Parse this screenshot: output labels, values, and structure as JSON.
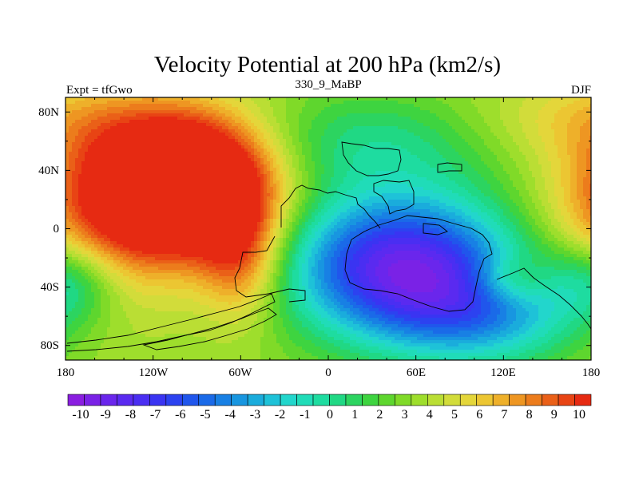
{
  "chart_data": {
    "type": "heatmap",
    "title": "Velocity Potential at 200 hPa (km2/s)",
    "subtitle_left": "Expt = tfGwo",
    "subtitle_center": "330_9_MaBP",
    "subtitle_right": "DJF",
    "x_ticks": [
      "180",
      "120W",
      "60W",
      "0",
      "60E",
      "120E",
      "180"
    ],
    "x_tick_values": [
      -180,
      -120,
      -60,
      0,
      60,
      120,
      180
    ],
    "y_ticks": [
      "80N",
      "40N",
      "0",
      "40S",
      "80S"
    ],
    "y_tick_values": [
      80,
      40,
      0,
      -40,
      -80
    ],
    "xlim": [
      -180,
      180
    ],
    "ylim": [
      -90,
      90
    ],
    "value_range": [
      -10.5,
      10.5
    ],
    "colorbar_labels": [
      "-10",
      "-9",
      "-8",
      "-7",
      "-6",
      "-5",
      "-4",
      "-3",
      "-2",
      "-1",
      "0",
      "1",
      "2",
      "3",
      "4",
      "5",
      "6",
      "7",
      "8",
      "9",
      "10"
    ],
    "colorbar_colors": [
      "#8a1ee0",
      "#7a22e6",
      "#6a26ec",
      "#5a2af0",
      "#4a2ef2",
      "#3a34f2",
      "#2c42f0",
      "#2056ec",
      "#1a6ae8",
      "#1880e4",
      "#1896e0",
      "#1aacdc",
      "#1ec2d8",
      "#22d6cc",
      "#20dcb8",
      "#1edca0",
      "#20d884",
      "#2cd460",
      "#3ed440",
      "#5ed62e",
      "#80da28",
      "#9ede2c",
      "#bade34",
      "#d2dc3a",
      "#e4d63a",
      "#ecc632",
      "#eeb02a",
      "#ee9622",
      "#ec7c1c",
      "#ea6018",
      "#e84414",
      "#e62a12"
    ],
    "features": [
      {
        "lon": -95,
        "lat": 30,
        "amp": 14,
        "rlon": 40,
        "rlat": 32
      },
      {
        "lon": -155,
        "lat": 10,
        "amp": 5,
        "rlon": 40,
        "rlat": 45
      },
      {
        "lon": -60,
        "lat": -20,
        "amp": 5,
        "rlon": 20,
        "rlat": 30
      },
      {
        "lon": 50,
        "lat": -25,
        "amp": -12,
        "rlon": 55,
        "rlat": 35
      },
      {
        "lon": 110,
        "lat": -60,
        "amp": -5,
        "rlon": 50,
        "rlat": 25
      },
      {
        "lon": -175,
        "lat": -35,
        "amp": -4,
        "rlon": 25,
        "rlat": 20
      },
      {
        "lon": 30,
        "lat": 60,
        "amp": -3,
        "rlon": 60,
        "rlat": 25
      },
      {
        "lon": 125,
        "lat": -35,
        "amp": 3,
        "rlon": 18,
        "rlat": 12
      },
      {
        "lon": 180,
        "lat": 75,
        "amp": 2,
        "rlon": 60,
        "rlat": 20
      }
    ]
  }
}
